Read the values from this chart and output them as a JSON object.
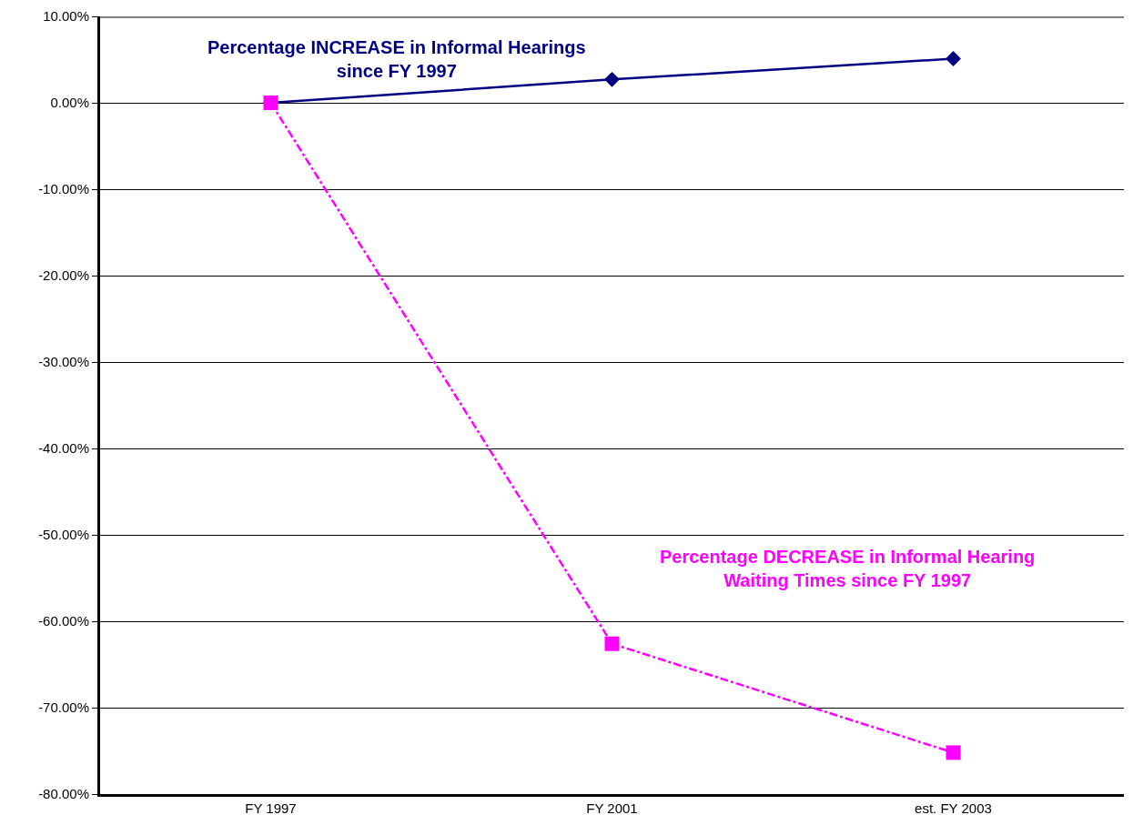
{
  "chart_data": {
    "type": "line",
    "categories": [
      "FY 1997",
      "FY 2001",
      "est. FY 2003"
    ],
    "series": [
      {
        "name": "Percentage INCREASE in Informal Hearings\nsince FY 1997",
        "color": "#000080",
        "values": [
          0,
          2.7,
          5.1
        ],
        "marker": "diamond",
        "line_style": "solid"
      },
      {
        "name": "Percentage DECREASE in Informal Hearing\nWaiting Times since FY 1997",
        "color": "#ff00ff",
        "values": [
          0,
          -62.6,
          -75.2
        ],
        "marker": "square",
        "line_style": "dashdot"
      }
    ],
    "ylim": [
      -80,
      10
    ],
    "yticks": [
      {
        "value": -80,
        "label": "-80.00%"
      },
      {
        "value": -70,
        "label": "-70.00%"
      },
      {
        "value": -60,
        "label": "-60.00%"
      },
      {
        "value": -50,
        "label": "-50.00%"
      },
      {
        "value": -40,
        "label": "-40.00%"
      },
      {
        "value": -30,
        "label": "-30.00%"
      },
      {
        "value": -20,
        "label": "-20.00%"
      },
      {
        "value": -10,
        "label": "-10.00%"
      },
      {
        "value": 0,
        "label": "0.00%"
      },
      {
        "value": 10,
        "label": "10.00%"
      }
    ],
    "grid": "y",
    "legend": false
  }
}
